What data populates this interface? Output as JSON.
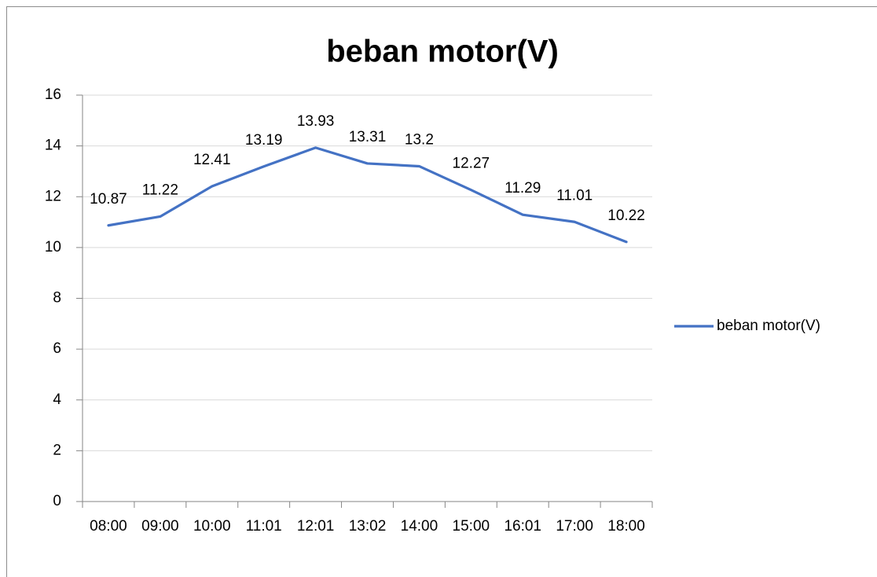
{
  "chart_data": {
    "type": "line",
    "title": "beban motor(V)",
    "categories": [
      "08:00",
      "09:00",
      "10:00",
      "11:01",
      "12:01",
      "13:02",
      "14:00",
      "15:00",
      "16:01",
      "17:00",
      "18:00"
    ],
    "series": [
      {
        "name": "beban motor(V)",
        "color": "#4472c4",
        "values": [
          10.87,
          11.22,
          12.41,
          13.19,
          13.93,
          13.31,
          13.2,
          12.27,
          11.29,
          11.01,
          10.22
        ]
      }
    ],
    "ylim": [
      0,
      16
    ],
    "yticks": [
      0,
      2,
      4,
      6,
      8,
      10,
      12,
      14,
      16
    ],
    "grid": true,
    "legend": "right",
    "data_labels": true
  }
}
